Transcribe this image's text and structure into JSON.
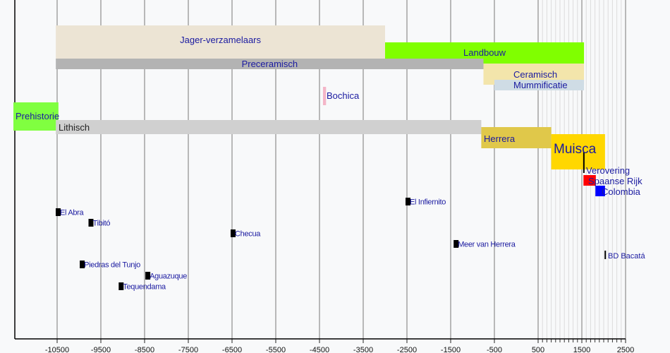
{
  "chart_data": {
    "type": "timeline",
    "title": "",
    "xlabel": "",
    "xlim": [
      -11500,
      2500
    ],
    "ticks": [
      -10500,
      -9500,
      -8500,
      -7500,
      -6500,
      -5500,
      -4500,
      -3500,
      -2500,
      -1500,
      -500,
      500,
      1500,
      2500
    ],
    "tick_labels": [
      "-10500",
      "-9500",
      "-8500",
      "-7500",
      "-6500",
      "-5500",
      "-4500",
      "-3500",
      "-2500",
      "-1500",
      "-500",
      "500",
      "1500",
      "2500"
    ],
    "minor_grid_step": 100,
    "minor_grid_range": [
      500,
      2500
    ],
    "periods": [
      {
        "label": "Jager-verzamelaars",
        "start": -10530,
        "end": -3000,
        "color": "#ece4d4",
        "text_color": "#1a1aa0"
      },
      {
        "label": "Landbouw",
        "start": -3000,
        "end": 1550,
        "color": "#80ff00",
        "text_color": "#1a1aa0"
      },
      {
        "label": "Preceramisch",
        "start": -10530,
        "end": -750,
        "color": "#b3b3b3",
        "text_color": "#1a1aa0"
      },
      {
        "label": "Ceramisch",
        "start": -750,
        "end": 1550,
        "color": "#f3e5ab",
        "text_color": "#1a1aa0"
      },
      {
        "label": "Mummificatie",
        "start": -500,
        "end": 1550,
        "color": "#cfdce5",
        "text_color": "#1a1aa0"
      },
      {
        "label": "Bochica",
        "start": -4420,
        "end": -4350,
        "color": "#f4b6c8",
        "text_color": "#1a1aa0"
      },
      {
        "label": "Prehistorie",
        "start": -11500,
        "end": -10470,
        "color": "#80ff40",
        "text_color": "#1a1aa0"
      },
      {
        "label": "Lithisch",
        "start": -10530,
        "end": -800,
        "color": "#d0d0d0",
        "text_color": "#222222"
      },
      {
        "label": "Herrera",
        "start": -800,
        "end": 800,
        "color": "#e0c84a",
        "text_color": "#1a1aa0"
      },
      {
        "label": "Muisca",
        "start": 800,
        "end": 2030,
        "color": "#ffd700",
        "text_color": "#1a1aa0"
      },
      {
        "label": "Verovering",
        "start": 1530,
        "end": 1545,
        "color": "#000000",
        "text_color": "#1a1aa0"
      },
      {
        "label": "Spaanse Rijk",
        "start": 1537,
        "end": 1820,
        "color": "#ff0000",
        "text_color": "#1a1aa0"
      },
      {
        "label": "Colombia",
        "start": 1810,
        "end": 2030,
        "color": "#0000ff",
        "text_color": "#1a1aa0"
      },
      {
        "label": "BD Bacatá",
        "start": 2020,
        "end": 2050,
        "color": "#000000",
        "text_color": "#1a1aa0"
      }
    ],
    "events": [
      {
        "label": "El Abra",
        "year": -10500
      },
      {
        "label": "Tibitó",
        "year": -9750
      },
      {
        "label": "Checua",
        "year": -6500
      },
      {
        "label": "El Infiernito",
        "year": -2500
      },
      {
        "label": "Meer van Herrera",
        "year": -1400
      },
      {
        "label": "Piedras del Tunjo",
        "year": -9950
      },
      {
        "label": "Aguazuque",
        "year": -8450
      },
      {
        "label": "Tequendama",
        "year": -9060
      }
    ]
  }
}
